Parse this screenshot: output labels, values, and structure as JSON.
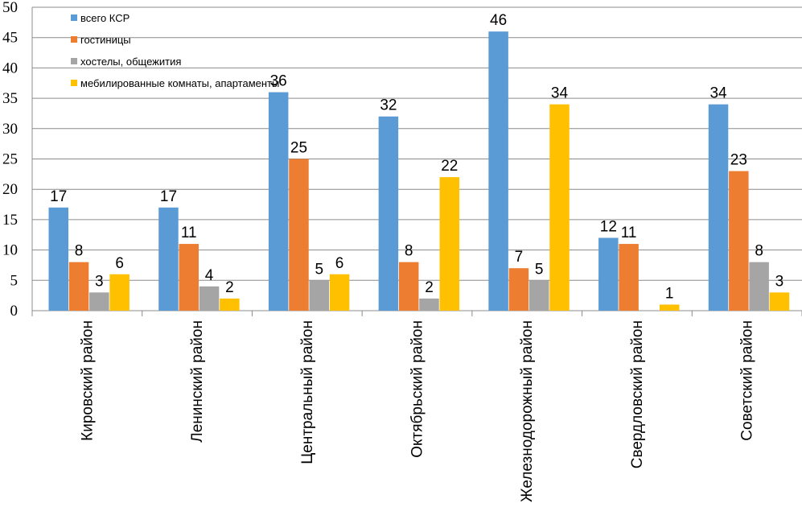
{
  "chart_data": {
    "type": "bar",
    "title": "",
    "xlabel": "",
    "ylabel": "",
    "ylim": [
      0,
      50
    ],
    "y_ticks": [
      "0",
      "5",
      "10",
      "15",
      "20",
      "25",
      "30",
      "35",
      "40",
      "45",
      "50"
    ],
    "grid": "horizontal",
    "legend_position": "top-left",
    "categories": [
      "Кировский район",
      "Ленинский район",
      "Центральный район",
      "Октябрьский район",
      "Железнодорожный район",
      "Свердловский район",
      "Советский район"
    ],
    "series": [
      {
        "name": "всего КСР",
        "color": "#5B9BD5",
        "values": [
          17,
          17,
          36,
          32,
          46,
          12,
          34
        ]
      },
      {
        "name": "гостиницы",
        "color": "#ED7D31",
        "values": [
          8,
          11,
          25,
          8,
          7,
          11,
          23
        ]
      },
      {
        "name": "хостелы, общежития",
        "color": "#A5A5A5",
        "values": [
          3,
          4,
          5,
          2,
          5,
          null,
          8
        ]
      },
      {
        "name": "мебилированные комнаты, апартаменты",
        "color": "#FFC000",
        "values": [
          6,
          2,
          6,
          22,
          34,
          1,
          3
        ]
      }
    ]
  }
}
